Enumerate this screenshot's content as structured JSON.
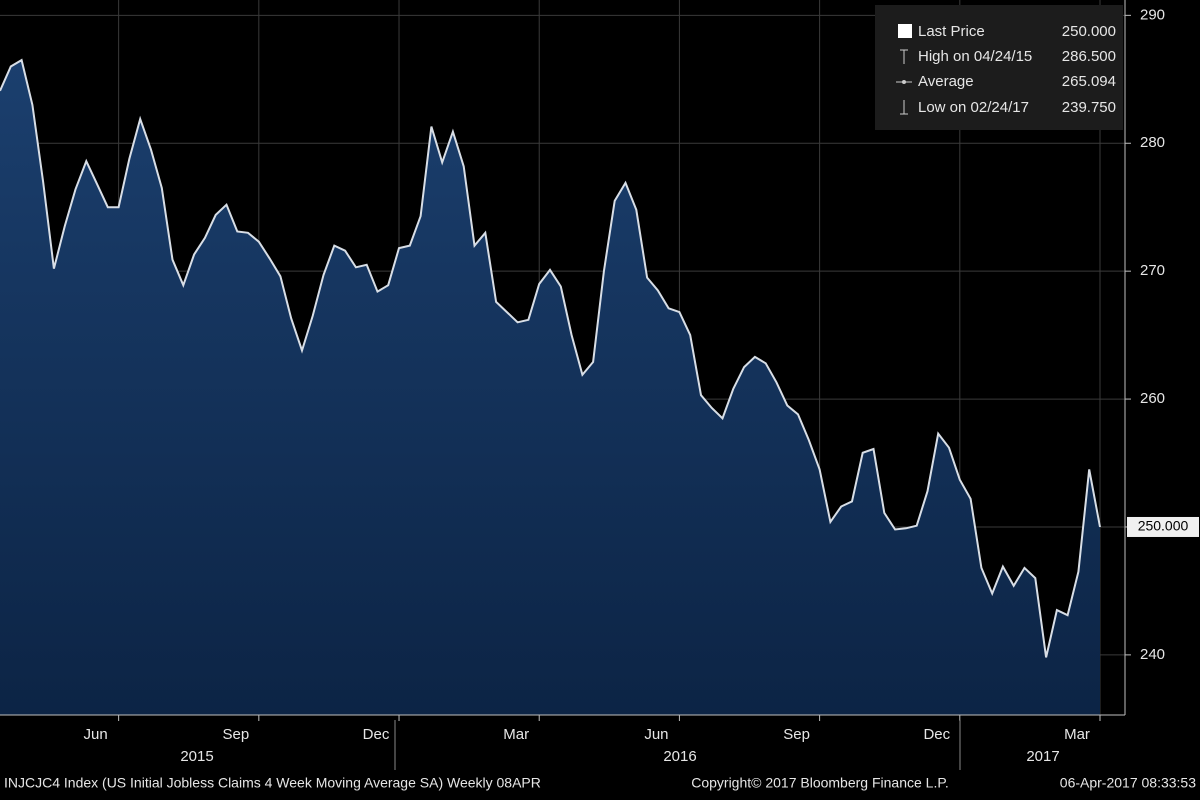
{
  "chart_data": {
    "type": "area",
    "values": [
      284.1,
      286.0,
      286.5,
      283.0,
      277.0,
      270.2,
      273.5,
      276.4,
      278.6,
      276.8,
      275.0,
      275.0,
      278.8,
      281.9,
      279.5,
      276.5,
      270.9,
      268.9,
      271.3,
      272.6,
      274.4,
      275.2,
      273.1,
      273.0,
      272.3,
      271.0,
      269.6,
      266.3,
      263.8,
      266.5,
      269.7,
      272.0,
      271.6,
      270.3,
      270.5,
      268.4,
      268.9,
      271.8,
      272.0,
      274.3,
      281.3,
      278.5,
      280.9,
      278.2,
      272.0,
      273.0,
      267.6,
      266.8,
      266.0,
      266.2,
      269.0,
      270.1,
      268.8,
      265.0,
      261.9,
      262.9,
      270.0,
      275.5,
      276.9,
      274.8,
      269.5,
      268.5,
      267.1,
      266.8,
      265.0,
      260.3,
      259.3,
      258.5,
      260.8,
      262.5,
      263.3,
      262.8,
      261.3,
      259.5,
      258.8,
      256.8,
      254.5,
      250.4,
      251.6,
      252.0,
      255.8,
      256.1,
      251.1,
      249.8,
      249.9,
      250.1,
      252.8,
      257.3,
      256.2,
      253.7,
      252.2,
      246.8,
      244.8,
      246.9,
      245.4,
      246.8,
      246.0,
      239.8,
      243.5,
      243.1,
      246.5,
      254.5,
      250.0
    ],
    "color": "#d8dee6",
    "fill": "#14335c",
    "ylim": [
      235.3,
      291.2
    ],
    "yticks": [
      240,
      250,
      260,
      270,
      280,
      290
    ],
    "xticks": [
      {
        "value": 11,
        "label": "Jun"
      },
      {
        "value": 24,
        "label": "Sep"
      },
      {
        "value": 37,
        "label": "Dec"
      },
      {
        "value": 50,
        "label": "Mar"
      },
      {
        "value": 63,
        "label": "Jun"
      },
      {
        "value": 76,
        "label": "Sep"
      },
      {
        "value": 89,
        "label": "Dec"
      },
      {
        "value": 102,
        "label": "Mar"
      }
    ],
    "years": [
      "2015",
      "2016",
      "2017"
    ],
    "grid": true,
    "last_value_label": "250.000",
    "legend": [
      {
        "name": "Last Price",
        "value": "250.000"
      },
      {
        "name": "High on 04/24/15",
        "value": "286.500"
      },
      {
        "name": "Average",
        "value": "265.094"
      },
      {
        "name": "Low on 02/24/17",
        "value": "239.750"
      }
    ],
    "footer": {
      "left": "INJCJC4 Index (US Initial Jobless Claims 4 Week Moving Average SA)  Weekly 08APR",
      "center": "Copyright© 2017 Bloomberg Finance L.P.",
      "right": "06-Apr-2017 08:33:53"
    }
  }
}
